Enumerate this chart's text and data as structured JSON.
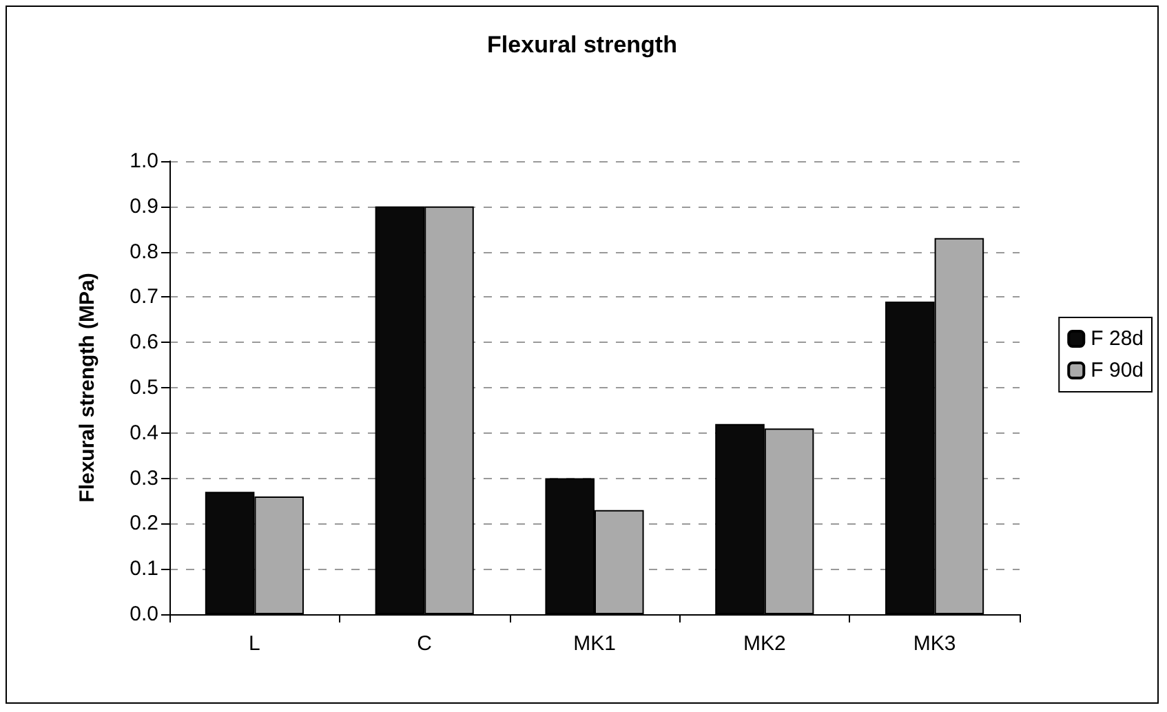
{
  "chart_data": {
    "type": "bar",
    "title": "Flexural strength",
    "ylabel": "Flexural strength (MPa)",
    "categories": [
      "L",
      "C",
      "MK1",
      "MK2",
      "MK3"
    ],
    "series": [
      {
        "name": "F 28d",
        "color": "#0a0a0a",
        "values": [
          0.27,
          0.9,
          0.3,
          0.42,
          0.69
        ]
      },
      {
        "name": "F 90d",
        "color": "#aaaaaa",
        "values": [
          0.26,
          0.9,
          0.23,
          0.41,
          0.83
        ]
      }
    ],
    "ylim": [
      0,
      1.0
    ],
    "yticks": [
      {
        "value": 0,
        "label": "0.0"
      },
      {
        "value": 0.1,
        "label": "0.1"
      },
      {
        "value": 0.2,
        "label": "0.2"
      },
      {
        "value": 0.3,
        "label": "0.3"
      },
      {
        "value": 0.4,
        "label": "0.4"
      },
      {
        "value": 0.5,
        "label": "0.5"
      },
      {
        "value": 0.6,
        "label": "0.6"
      },
      {
        "value": 0.7,
        "label": "0.7"
      },
      {
        "value": 0.8,
        "label": "0.8"
      },
      {
        "value": 0.9,
        "label": "0.9"
      },
      {
        "value": 1.0,
        "label": "1.0"
      }
    ],
    "grid": "y",
    "legend": "right"
  }
}
